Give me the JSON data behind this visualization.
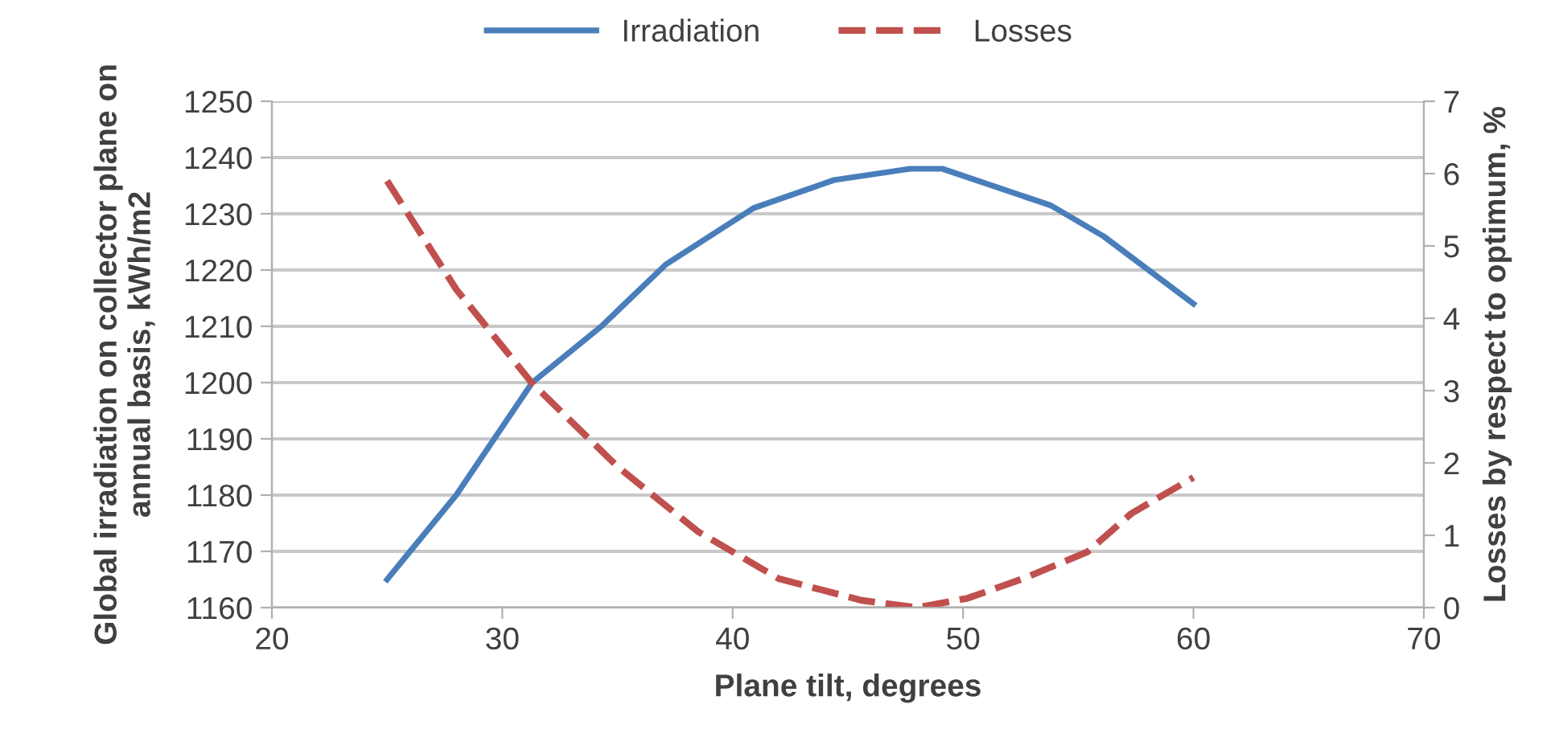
{
  "chart_data": {
    "type": "line",
    "xlabel": "Plane tilt, degrees",
    "ylabel": "Global irradiation on collector plane on\nannual basis, kWh/m2",
    "y2label": "Losses by respect to optimum, %",
    "xlim": [
      20,
      70
    ],
    "xticks": [
      20,
      30,
      40,
      50,
      60,
      70
    ],
    "ylim": [
      1160,
      1250
    ],
    "yticks": [
      1160,
      1170,
      1180,
      1190,
      1200,
      1210,
      1220,
      1230,
      1240,
      1250
    ],
    "y2lim": [
      0,
      7
    ],
    "y2ticks": [
      0,
      1,
      2,
      3,
      4,
      5,
      6,
      7
    ],
    "grid": "y",
    "legend": "top",
    "marker": "none",
    "series": [
      {
        "name": "Irradiation",
        "color": "#4a7ebb",
        "line_style": "solid",
        "x": [
          25,
          28,
          31.3,
          34.3,
          37.1,
          40.9,
          44.4,
          47.7,
          49.1,
          53.8,
          56.1,
          60
        ],
        "values": [
          1165,
          1180,
          1200,
          1210,
          1221,
          1231,
          1236,
          1238,
          1238,
          1231.5,
          1226,
          1214
        ]
      },
      {
        "name": "Losses",
        "color": "#c0504d",
        "line_style": "dashed",
        "axis": "y2",
        "x": [
          25,
          28,
          31.3,
          35,
          38.5,
          42,
          45.6,
          48,
          50.2,
          52.6,
          55.4,
          57.3,
          60
        ],
        "values": [
          5.9,
          4.4,
          3.1,
          1.95,
          1.05,
          0.4,
          0.1,
          0.0,
          0.13,
          0.4,
          0.77,
          1.3,
          1.8
        ]
      }
    ]
  }
}
